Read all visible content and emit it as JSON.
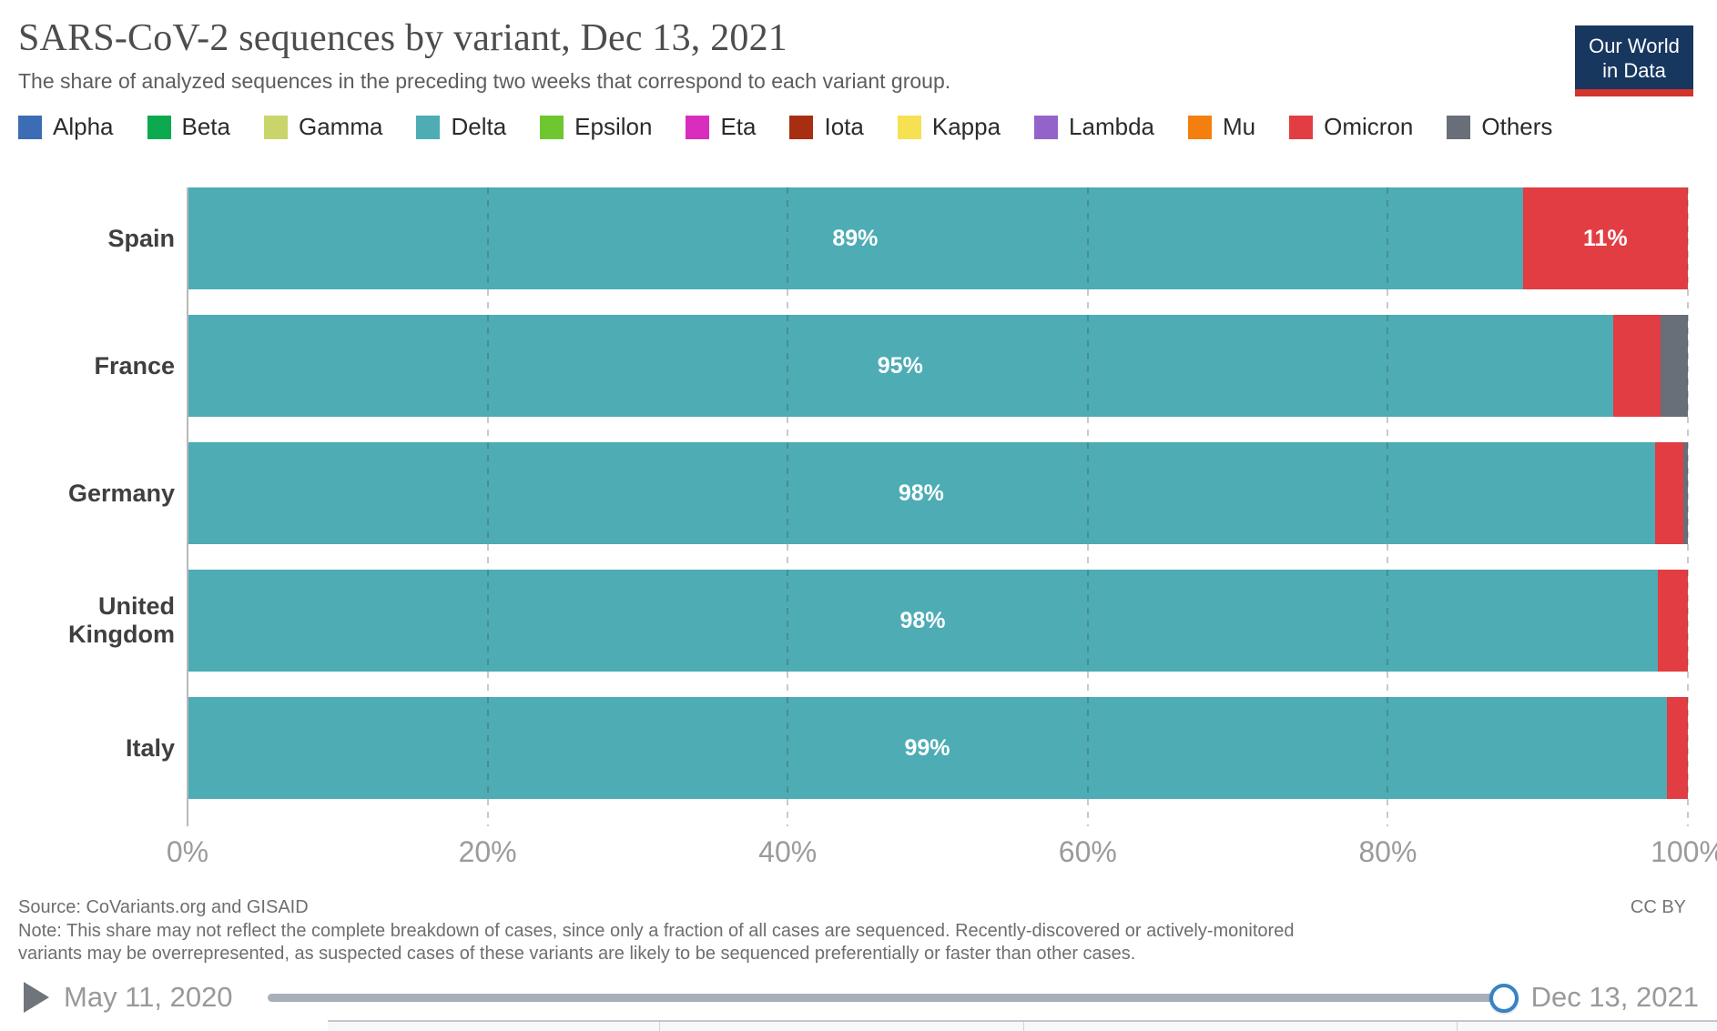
{
  "header": {
    "title": "SARS-CoV-2 sequences by variant, Dec 13, 2021",
    "subtitle": "The share of analyzed sequences in the preceding two weeks that correspond to each variant group.",
    "logo_line1": "Our World",
    "logo_line2": "in Data"
  },
  "legend": [
    {
      "label": "Alpha",
      "color": "#3C6CB4"
    },
    {
      "label": "Beta",
      "color": "#0DA94E"
    },
    {
      "label": "Gamma",
      "color": "#C9D56A"
    },
    {
      "label": "Delta",
      "color": "#4DACB4"
    },
    {
      "label": "Epsilon",
      "color": "#6EC72F"
    },
    {
      "label": "Eta",
      "color": "#D82DBE"
    },
    {
      "label": "Iota",
      "color": "#A72E10"
    },
    {
      "label": "Kappa",
      "color": "#F6E153"
    },
    {
      "label": "Lambda",
      "color": "#9463C9"
    },
    {
      "label": "Mu",
      "color": "#F27F0E"
    },
    {
      "label": "Omicron",
      "color": "#E23D43"
    },
    {
      "label": "Others",
      "color": "#686F79"
    }
  ],
  "chart_data": {
    "type": "bar",
    "orientation": "horizontal-stacked",
    "title": "SARS-CoV-2 sequences by variant, Dec 13, 2021",
    "categories": [
      "Spain",
      "France",
      "Germany",
      "United Kingdom",
      "Italy"
    ],
    "series": [
      {
        "name": "Delta",
        "color": "#4DACB4",
        "values": [
          89,
          95,
          97.8,
          98,
          98.6
        ],
        "labels": [
          "89%",
          "95%",
          "98%",
          "98%",
          "99%"
        ]
      },
      {
        "name": "Omicron",
        "color": "#E23D43",
        "values": [
          11,
          3.2,
          1.9,
          2,
          1.4
        ],
        "labels": [
          "11%",
          "",
          "",
          "",
          ""
        ]
      },
      {
        "name": "Others",
        "color": "#686F79",
        "values": [
          0,
          1.8,
          0.3,
          0,
          0
        ],
        "labels": [
          "",
          "",
          "",
          "",
          ""
        ]
      }
    ],
    "xlim": [
      0,
      100
    ],
    "x_tick_labels": [
      "0%",
      "20%",
      "40%",
      "60%",
      "80%",
      "100%"
    ],
    "grid": "dashed-vertical",
    "legend_position": "top"
  },
  "footer": {
    "source": "Source: CoVariants.org and GISAID",
    "note": "Note: This share may not reflect the complete breakdown of cases, since only a fraction of all cases are sequenced. Recently-discovered or actively-monitored variants may be overrepresented, as suspected cases of these variants are likely to be sequenced preferentially or faster than other cases.",
    "license": "CC BY"
  },
  "timeline": {
    "start_label": "May 11, 2020",
    "end_label": "Dec 13, 2021",
    "handle_color": "#3583C6"
  }
}
